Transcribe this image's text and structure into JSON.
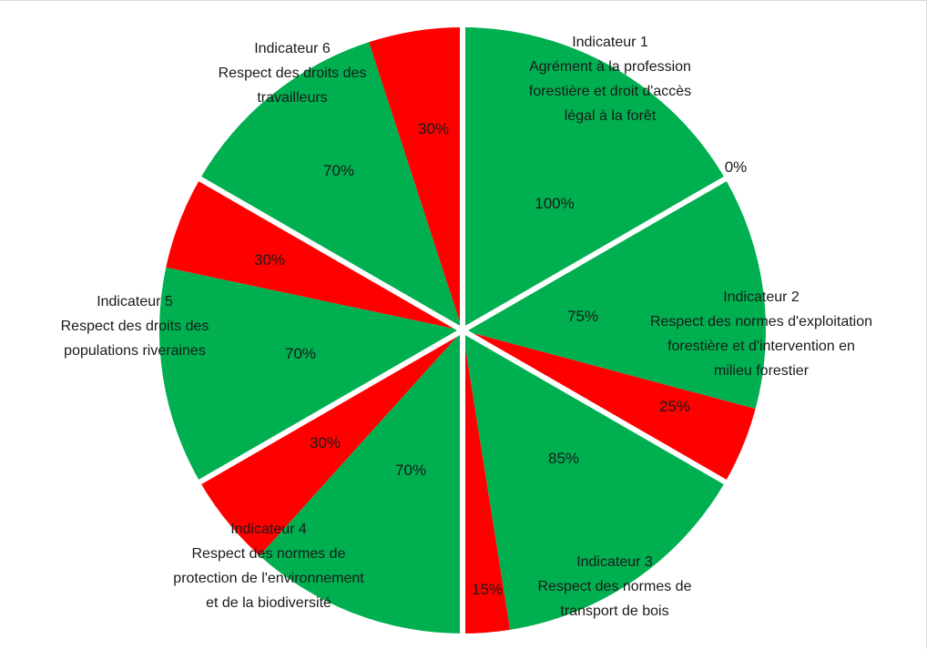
{
  "chart_data": {
    "type": "pie",
    "layout": "split-sector",
    "colors": {
      "conforme": "#00b050",
      "non_conforme": "#ff0000",
      "separator": "#ffffff"
    },
    "indicators": [
      {
        "lines": [
          "Indicateur 1",
          "Agrément à la profession",
          "forestière et droit d'accès",
          "légal à la forêt"
        ],
        "green": 100,
        "red": 0,
        "green_label": "100%",
        "red_label": "0%"
      },
      {
        "lines": [
          "Indicateur 2",
          "Respect des normes d'exploitation",
          "forestière et d'intervention en",
          "milieu forestier"
        ],
        "green": 75,
        "red": 25,
        "green_label": "75%",
        "red_label": "25%"
      },
      {
        "lines": [
          "Indicateur 3",
          "Respect des normes de",
          "transport de bois"
        ],
        "green": 85,
        "red": 15,
        "green_label": "85%",
        "red_label": "15%"
      },
      {
        "lines": [
          "Indicateur 4",
          "Respect des normes de",
          "protection de l'environnement",
          "et de la biodiversité"
        ],
        "green": 70,
        "red": 30,
        "green_label": "70%",
        "red_label": "30%"
      },
      {
        "lines": [
          "Indicateur 5",
          "Respect des droits des",
          "populations riveraines"
        ],
        "green": 70,
        "red": 30,
        "green_label": "70%",
        "red_label": "30%"
      },
      {
        "lines": [
          "Indicateur 6",
          "Respect des droits des",
          "travailleurs"
        ],
        "green": 70,
        "red": 30,
        "green_label": "70%",
        "red_label": "30%"
      }
    ]
  }
}
